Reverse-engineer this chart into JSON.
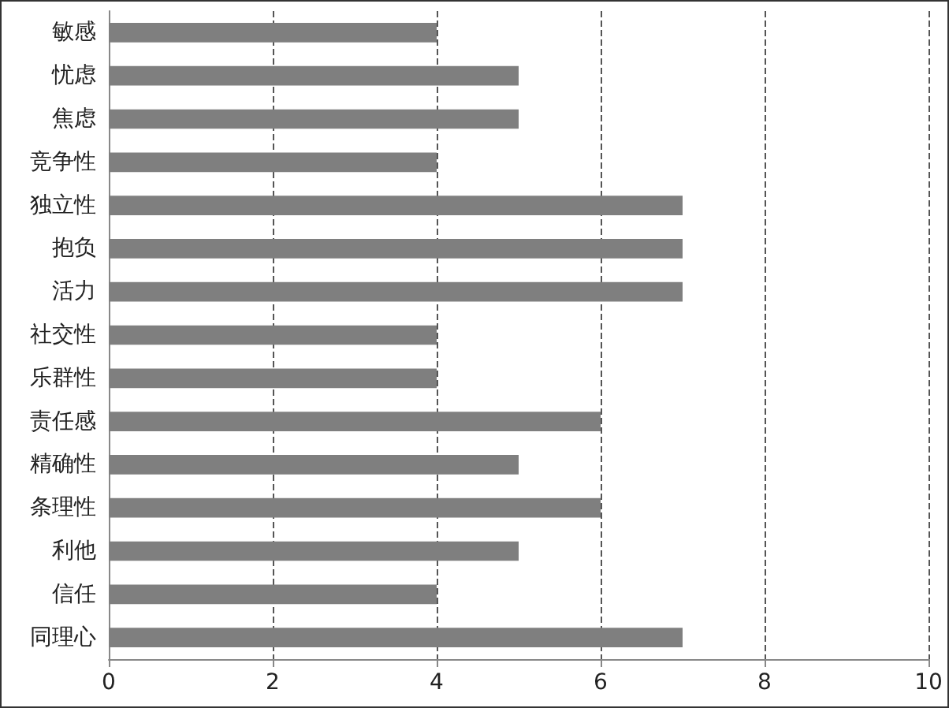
{
  "chart_data": {
    "type": "bar",
    "orientation": "horizontal",
    "categories": [
      "敏感",
      "忧虑",
      "焦虑",
      "竞争性",
      "独立性",
      "抱负",
      "活力",
      "社交性",
      "乐群性",
      "责任感",
      "精确性",
      "条理性",
      "利他",
      "信任",
      "同理心"
    ],
    "values": [
      4,
      5,
      5,
      4,
      7,
      7,
      7,
      4,
      4,
      6,
      5,
      6,
      5,
      4,
      7
    ],
    "color": "#7f7f7f",
    "xlim": [
      0,
      10
    ],
    "xticks": [
      0,
      2,
      4,
      6,
      8,
      10
    ],
    "grid": "x"
  }
}
